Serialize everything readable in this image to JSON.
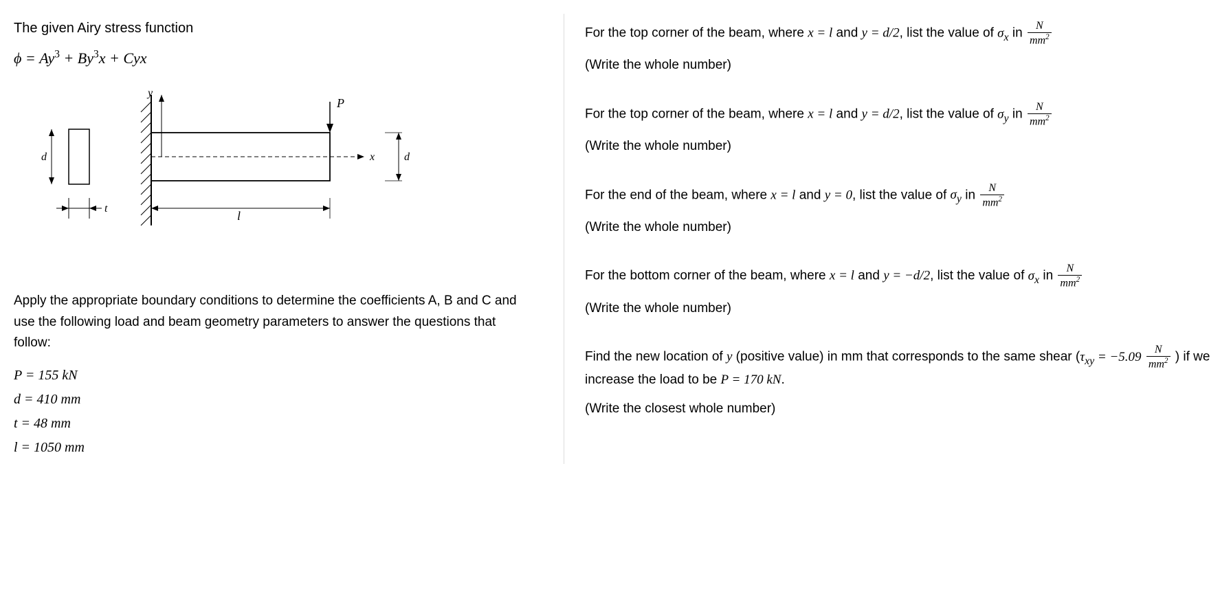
{
  "left": {
    "title": "The given Airy stress function",
    "equation_html": "<span class='mathit'>ϕ = Ay<span class='sup'>3</span> + By<span class='sup'>3</span>x + Cyx</span>",
    "instructions": "Apply the appropriate boundary conditions to determine the coefficients A, B and C and use the following load and beam geometry parameters to answer the questions that follow:",
    "params": {
      "P": "P = 155 kN",
      "d": "d = 410 mm",
      "t": "t = 48 mm",
      "l": "l = 1050 mm"
    },
    "diagram": {
      "labels": {
        "y": "y",
        "x": "x",
        "P": "P",
        "d": "d",
        "t": "t",
        "l": "l"
      }
    }
  },
  "right": {
    "q1": {
      "prompt_html": "For the top corner of the beam, where <span class='mathit'>x = l</span> and <span class='mathit'>y = d/2</span>, list the value of <span class='mathit'>σ<sub>x</sub></span> in <span class='frac'><span class='num'>N</span><span class='den'>mm<span class='sup2'>2</span></span></span>",
      "hint": "(Write the whole number)"
    },
    "q2": {
      "prompt_html": "For the top corner of the beam, where <span class='mathit'>x = l</span> and <span class='mathit'>y = d/2</span>, list the value of <span class='mathit'>σ<sub>y</sub></span> in <span class='frac'><span class='num'>N</span><span class='den'>mm<span class='sup2'>2</span></span></span>",
      "hint": "(Write the whole number)"
    },
    "q3": {
      "prompt_html": "For the end of the beam, where <span class='mathit'>x = l</span> and <span class='mathit'>y = 0</span>, list the value of <span class='mathit'>σ<sub>y</sub></span> in <span class='frac'><span class='num'>N</span><span class='den'>mm<span class='sup2'>2</span></span></span>",
      "hint": "(Write the whole number)"
    },
    "q4": {
      "prompt_html": "For the bottom corner of the beam, where <span class='mathit'>x = l</span> and <span class='mathit'>y = −d/2</span>, list the value of <span class='mathit'>σ<sub>x</sub></span> in <span class='frac'><span class='num'>N</span><span class='den'>mm<span class='sup2'>2</span></span></span>",
      "hint": "(Write the whole number)"
    },
    "q5": {
      "prompt_html": "Find the new location of <span class='mathit'>y</span> (positive value) in mm that corresponds to the same shear (<span class='mathit'>τ<sub>xy</sub> = −5.09</span> <span class='frac'><span class='num'>N</span><span class='den'>mm<span class='sup2'>2</span></span></span> ) if we increase the load to be <span class='mathit'>P = 170 kN</span>.",
      "hint": "(Write the closest whole number)"
    }
  }
}
